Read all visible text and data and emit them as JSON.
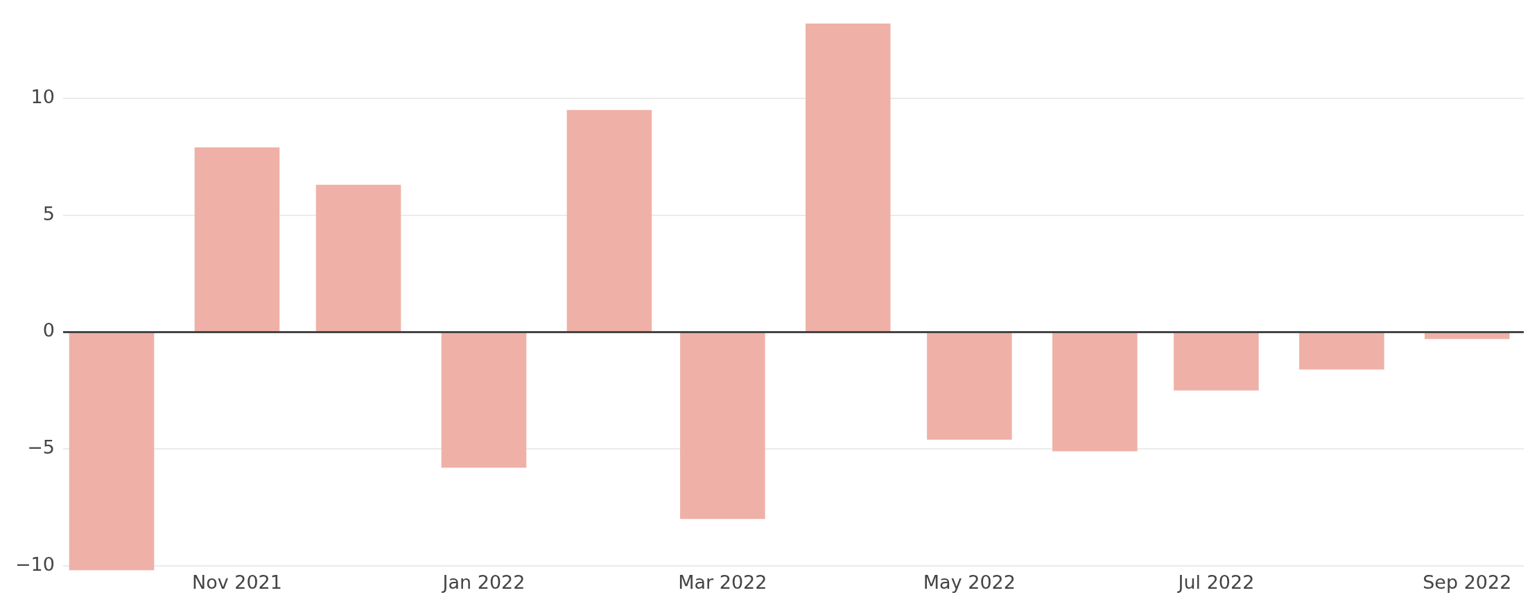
{
  "chart_data": {
    "type": "bar",
    "x": [
      "2021-10-01",
      "2021-11-01",
      "2021-12-01",
      "2022-01-01",
      "2022-02-01",
      "2022-03-01",
      "2022-04-01",
      "2022-05-01",
      "2022-06-01",
      "2022-07-01",
      "2022-08-01",
      "2022-09-01"
    ],
    "values": [
      -10.2,
      7.9,
      6.3,
      -5.8,
      9.5,
      -8.0,
      13.2,
      -4.6,
      -5.1,
      -2.5,
      -1.6,
      -0.3
    ],
    "color": "#efb1a7",
    "xlim": [
      "2021-09-19",
      "2022-09-15"
    ],
    "xticks": [
      {
        "value": "2021-11-01",
        "label": "Nov 2021"
      },
      {
        "value": "2022-01-01",
        "label": "Jan 2022"
      },
      {
        "value": "2022-03-01",
        "label": "Mar 2022"
      },
      {
        "value": "2022-05-01",
        "label": "May 2022"
      },
      {
        "value": "2022-07-01",
        "label": "Jul 2022"
      },
      {
        "value": "2022-09-01",
        "label": "Sep 2022"
      }
    ],
    "yticks": [
      {
        "value": -10,
        "label": "−10"
      },
      {
        "value": -5,
        "label": "−5"
      },
      0,
      5,
      10
    ],
    "ylim": [
      -10.2,
      13.2
    ],
    "grid": "y"
  }
}
